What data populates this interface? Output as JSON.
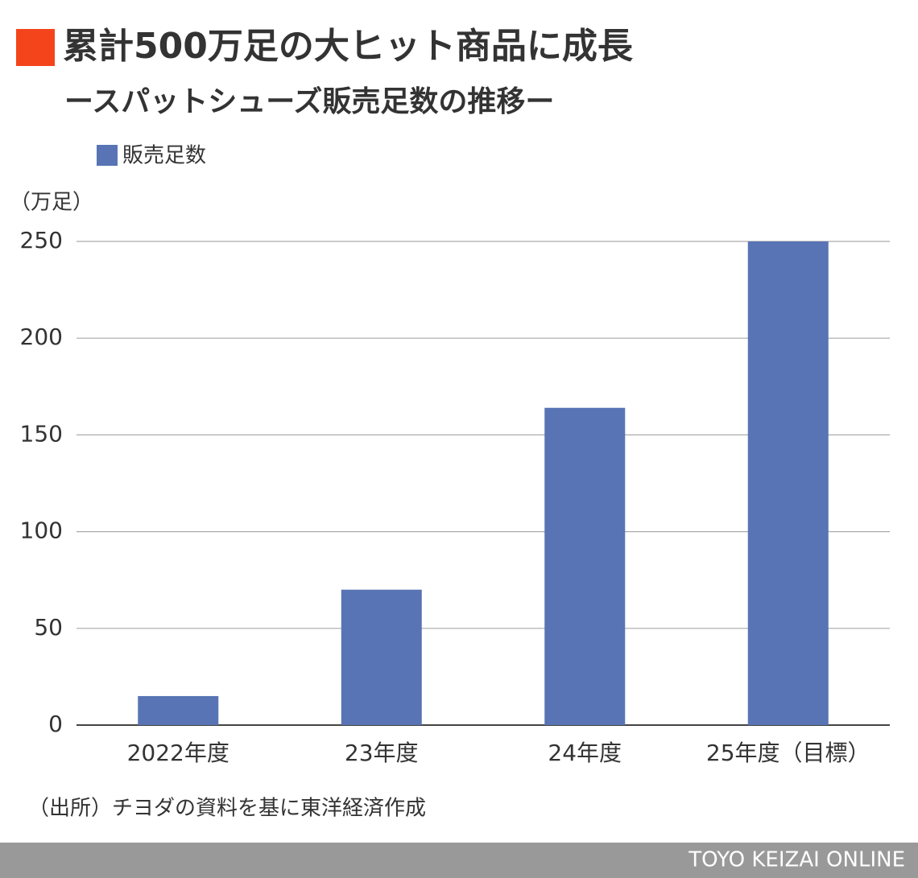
{
  "chart_data": {
    "type": "bar",
    "title": "累計500万足の大ヒット商品に成長",
    "subtitle": "ースパットシューズ販売足数の推移ー",
    "y_axis_label": "（万足）",
    "categories": [
      "2022年度",
      "23年度",
      "24年度",
      "25年度（目標）"
    ],
    "series": [
      {
        "name": "販売足数",
        "color": "#5874b4",
        "values": [
          15,
          70,
          164,
          250
        ]
      }
    ],
    "ylim": [
      0,
      250
    ],
    "yticks": [
      0,
      50,
      100,
      150,
      200,
      250
    ],
    "grid": true,
    "source": "（出所）チヨダの資料を基に東洋経済作成"
  },
  "footer": "TOYO KEIZAI ONLINE"
}
